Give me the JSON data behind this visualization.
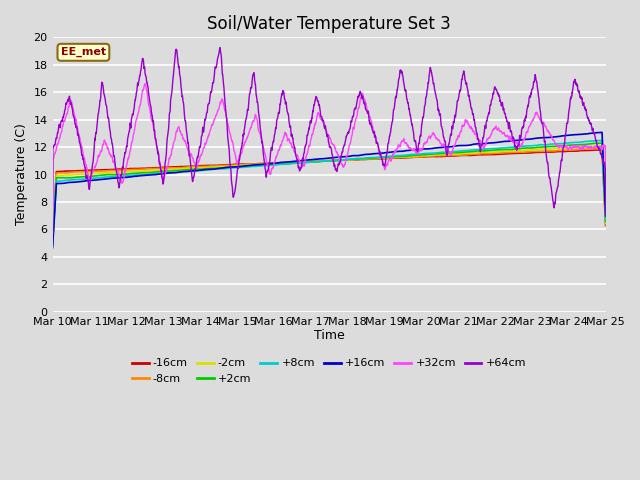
{
  "title": "Soil/Water Temperature Set 3",
  "xlabel": "Time",
  "ylabel": "Temperature (C)",
  "ylim": [
    0,
    20
  ],
  "yticks": [
    0,
    2,
    4,
    6,
    8,
    10,
    12,
    14,
    16,
    18,
    20
  ],
  "xtick_labels": [
    "Mar 10",
    "Mar 11",
    "Mar 12",
    "Mar 13",
    "Mar 14",
    "Mar 15",
    "Mar 16",
    "Mar 17",
    "Mar 18",
    "Mar 19",
    "Mar 20",
    "Mar 21",
    "Mar 22",
    "Mar 23",
    "Mar 24",
    "Mar 25"
  ],
  "plot_bg_color": "#dcdcdc",
  "fig_bg_color": "#dcdcdc",
  "annotation_text": "EE_met",
  "annotation_bg": "#ffffcc",
  "annotation_border": "#8b6914",
  "legend_labels": [
    "-16cm",
    "-8cm",
    "-2cm",
    "+2cm",
    "+8cm",
    "+16cm",
    "+32cm",
    "+64cm"
  ],
  "series_colors": [
    "#cc0000",
    "#ff8800",
    "#dddd00",
    "#00cc00",
    "#00cccc",
    "#0000cc",
    "#ff44ff",
    "#9900cc"
  ],
  "title_fontsize": 12,
  "axis_label_fontsize": 9,
  "tick_fontsize": 8,
  "legend_fontsize": 8
}
